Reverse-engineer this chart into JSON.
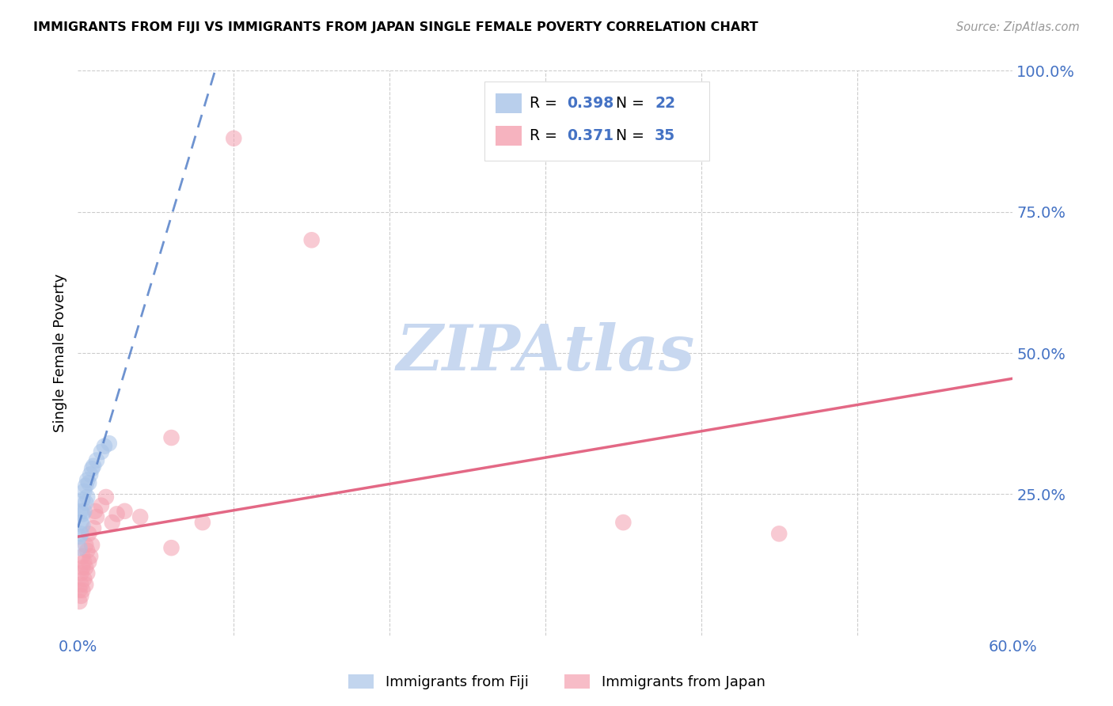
{
  "title": "IMMIGRANTS FROM FIJI VS IMMIGRANTS FROM JAPAN SINGLE FEMALE POVERTY CORRELATION CHART",
  "source": "Source: ZipAtlas.com",
  "ylabel": "Single Female Poverty",
  "legend_fiji": "Immigrants from Fiji",
  "legend_japan": "Immigrants from Japan",
  "R_fiji": 0.398,
  "N_fiji": 22,
  "R_japan": 0.371,
  "N_japan": 35,
  "xlim": [
    0.0,
    0.6
  ],
  "ylim": [
    0.0,
    1.0
  ],
  "color_fiji": "#a8c4e8",
  "color_japan": "#f4a0b0",
  "regression_fiji_color": "#5580c8",
  "regression_japan_color": "#e05878",
  "watermark_color": "#c8d8f0",
  "fiji_x": [
    0.001,
    0.001,
    0.002,
    0.002,
    0.002,
    0.003,
    0.003,
    0.003,
    0.004,
    0.004,
    0.005,
    0.005,
    0.006,
    0.006,
    0.007,
    0.008,
    0.009,
    0.01,
    0.012,
    0.015,
    0.017,
    0.02
  ],
  "fiji_y": [
    0.155,
    0.175,
    0.18,
    0.2,
    0.22,
    0.195,
    0.215,
    0.24,
    0.22,
    0.255,
    0.235,
    0.265,
    0.245,
    0.275,
    0.27,
    0.285,
    0.295,
    0.3,
    0.31,
    0.325,
    0.335,
    0.34
  ],
  "japan_x": [
    0.001,
    0.001,
    0.002,
    0.002,
    0.002,
    0.003,
    0.003,
    0.003,
    0.004,
    0.004,
    0.005,
    0.005,
    0.005,
    0.006,
    0.006,
    0.007,
    0.007,
    0.008,
    0.009,
    0.01,
    0.011,
    0.012,
    0.015,
    0.018,
    0.022,
    0.025,
    0.03,
    0.04,
    0.06,
    0.08,
    0.1,
    0.15,
    0.35,
    0.45,
    0.06
  ],
  "japan_y": [
    0.06,
    0.08,
    0.07,
    0.09,
    0.11,
    0.08,
    0.12,
    0.14,
    0.1,
    0.13,
    0.09,
    0.12,
    0.16,
    0.11,
    0.15,
    0.13,
    0.18,
    0.14,
    0.16,
    0.19,
    0.22,
    0.21,
    0.23,
    0.245,
    0.2,
    0.215,
    0.22,
    0.21,
    0.35,
    0.2,
    0.88,
    0.7,
    0.2,
    0.18,
    0.155
  ]
}
